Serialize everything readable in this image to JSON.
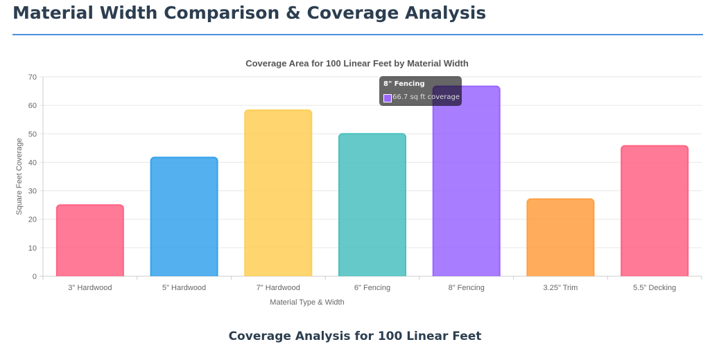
{
  "page_title": "Material Width Comparison & Coverage Analysis",
  "section_title": "Coverage Analysis for 100 Linear Feet",
  "tooltip": {
    "title": "8\" Fencing",
    "value": "66.7 sq ft coverage",
    "color": "#9966ff"
  },
  "chart_data": {
    "type": "bar",
    "title": "Coverage Area for 100 Linear Feet by Material Width",
    "xlabel": "Material Type & Width",
    "ylabel": "Square Feet Coverage",
    "ylim": [
      0,
      70
    ],
    "yticks": [
      0,
      10,
      20,
      30,
      40,
      50,
      60,
      70
    ],
    "grid": true,
    "categories": [
      "3\" Hardwood",
      "5\" Hardwood",
      "7\" Hardwood",
      "6\" Fencing",
      "8\" Fencing",
      "3.25\" Trim",
      "5.5\" Decking"
    ],
    "values": [
      25,
      41.7,
      58.3,
      50,
      66.7,
      27.1,
      45.8
    ],
    "colors": [
      "#ff6384",
      "#36a2eb",
      "#ffce56",
      "#4bc0c0",
      "#9966ff",
      "#ff9f40",
      "#ff6384"
    ]
  }
}
